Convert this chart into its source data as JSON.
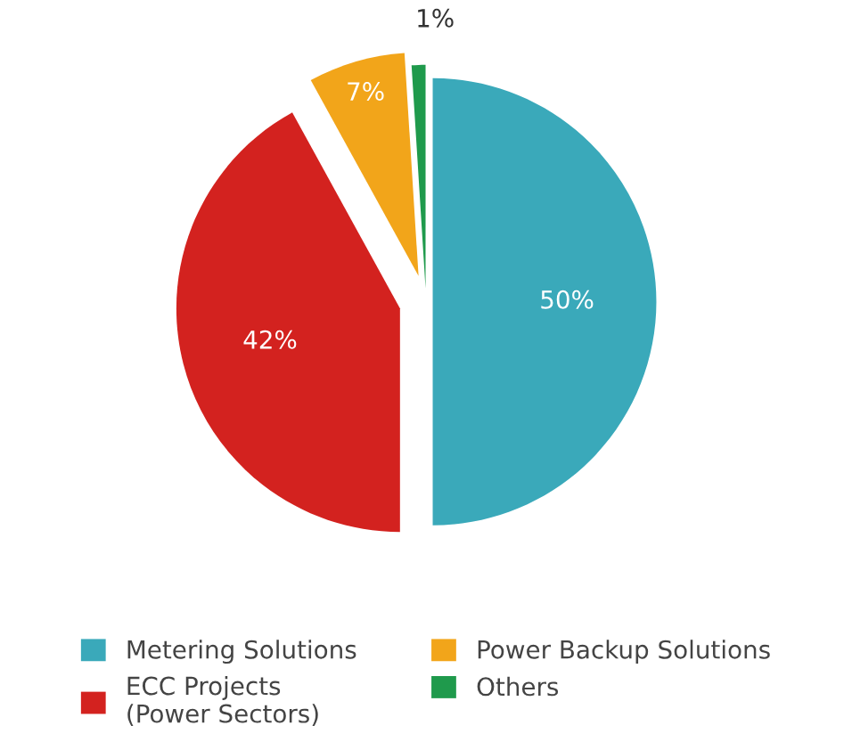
{
  "chart_data": {
    "type": "pie",
    "categories": [
      "Metering Solutions",
      "ECC Projects\n(Power Sectors)",
      "Power Backup Solutions",
      "Others"
    ],
    "values": [
      50,
      42,
      7,
      1
    ],
    "colors": [
      "#3aa9ba",
      "#d3221f",
      "#f2a51a",
      "#1f9a4c"
    ],
    "value_labels": [
      "50%",
      "42%",
      "7%",
      "1%"
    ],
    "legend": "bottom"
  }
}
